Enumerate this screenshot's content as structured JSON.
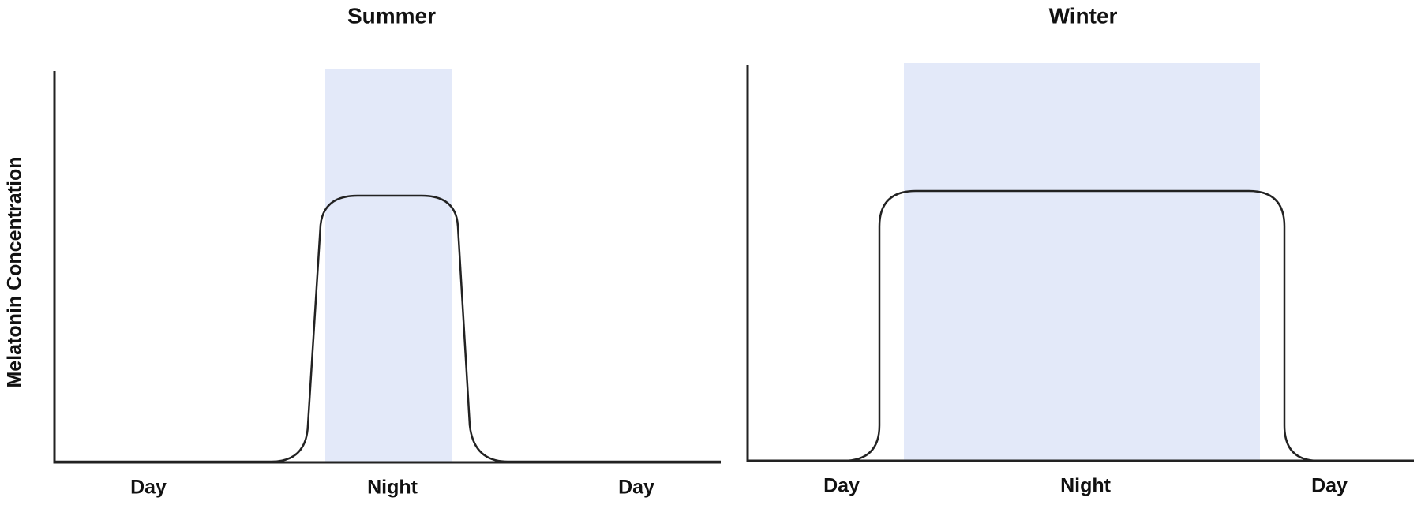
{
  "panels": [
    {
      "title": "Summer",
      "x_labels": [
        "Day",
        "Night",
        "Day"
      ]
    },
    {
      "title": "Winter",
      "x_labels": [
        "Day",
        "Night",
        "Day"
      ]
    }
  ],
  "y_label": "Melatonin Concentration"
}
